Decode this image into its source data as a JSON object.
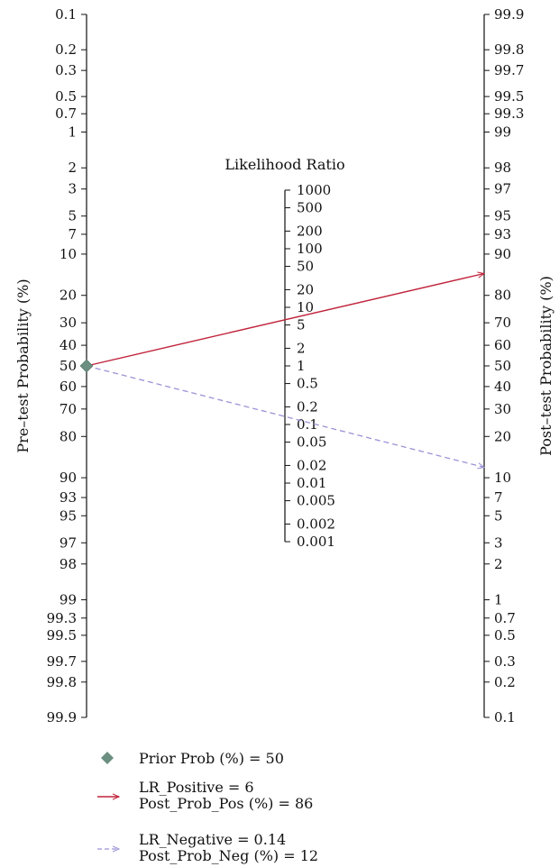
{
  "chart_data": {
    "type": "line",
    "pretest_axis": {
      "label": "Pre–test Probability (%)",
      "ticks": [
        "0.1",
        "0.2",
        "0.3",
        "0.5",
        "0.7",
        "1",
        "2",
        "3",
        "5",
        "7",
        "10",
        "20",
        "30",
        "40",
        "50",
        "60",
        "70",
        "80",
        "90",
        "93",
        "95",
        "97",
        "98",
        "99",
        "99.3",
        "99.5",
        "99.7",
        "99.8",
        "99.9"
      ]
    },
    "lr_axis": {
      "label": "Likelihood Ratio",
      "ticks": [
        "1000",
        "500",
        "200",
        "100",
        "50",
        "20",
        "10",
        "5",
        "2",
        "1",
        "0.5",
        "0.2",
        "0.1",
        "0.05",
        "0.02",
        "0.01",
        "0.005",
        "0.002",
        "0.001"
      ]
    },
    "posttest_axis": {
      "label": "Post–test Probability (%)",
      "ticks": [
        "99.9",
        "99.8",
        "99.7",
        "99.5",
        "99.3",
        "99",
        "98",
        "97",
        "95",
        "93",
        "90",
        "80",
        "70",
        "60",
        "50",
        "40",
        "30",
        "20",
        "10",
        "7",
        "5",
        "3",
        "2",
        "1",
        "0.7",
        "0.5",
        "0.3",
        "0.2",
        "0.1"
      ]
    },
    "prior_prob": 50,
    "lr_positive": 6,
    "post_prob_pos": 86,
    "lr_negative": 0.14,
    "post_prob_neg": 12,
    "colors": {
      "prior_marker": "#6b8f80",
      "positive_line": "#c0243b",
      "negative_line": "#9a93d6",
      "axis": "#111111"
    },
    "legend": [
      {
        "line1": "Prior Prob (%) = 50",
        "line2": ""
      },
      {
        "line1": "LR_Positive = 6",
        "line2": "Post_Prob_Pos (%) = 86"
      },
      {
        "line1": "LR_Negative = 0.14",
        "line2": "Post_Prob_Neg (%) = 12"
      }
    ]
  }
}
